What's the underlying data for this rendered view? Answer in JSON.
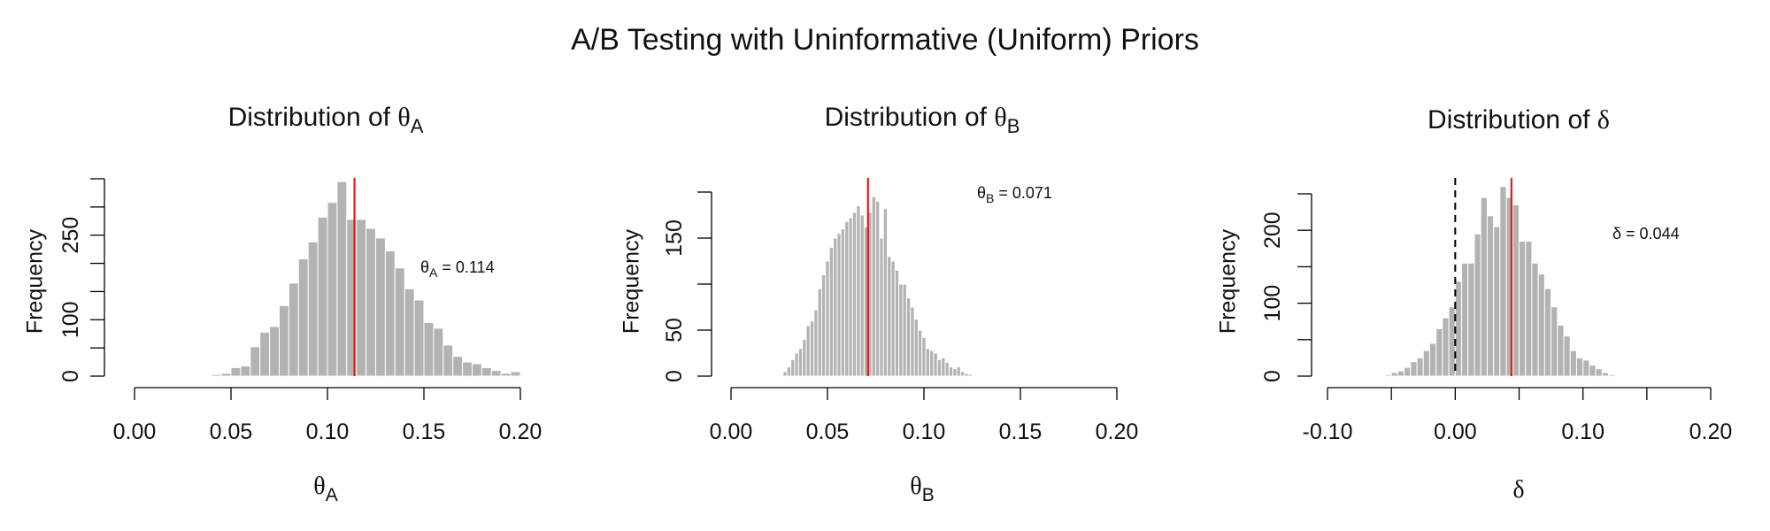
{
  "title": "A/B Testing with Uninformative (Uniform) Priors",
  "colors": {
    "bars": "#b3b3b3",
    "bar_edge": "#ffffff",
    "mean_line": "#e41a1c",
    "zero_line": "#000000",
    "axis": "#000000"
  },
  "chart_data": [
    {
      "type": "bar",
      "title_text": "Distribution of ",
      "title_symbol": "θ",
      "title_sub": "A",
      "ylabel": "Frequency",
      "xlabel_symbol": "θ",
      "xlabel_sub": "A",
      "xlim": [
        0,
        0.2
      ],
      "ylim": [
        0,
        350
      ],
      "xticks": [
        "0.00",
        "0.05",
        "0.10",
        "0.15",
        "0.20"
      ],
      "xtick_values": [
        0,
        0.05,
        0.1,
        0.15,
        0.2
      ],
      "yticks": [
        "0",
        "100",
        "250"
      ],
      "ytick_values": [
        0,
        100,
        250
      ],
      "yticks_unlabeled": [
        50,
        150,
        200,
        300,
        350
      ],
      "bin_start": 0.035,
      "bin_width": 0.005,
      "values": [
        1,
        3,
        5,
        15,
        18,
        52,
        78,
        88,
        125,
        165,
        208,
        238,
        282,
        308,
        345,
        278,
        278,
        262,
        245,
        222,
        192,
        155,
        135,
        95,
        85,
        55,
        35,
        25,
        22,
        15,
        10,
        5,
        8
      ],
      "mean": 0.114,
      "annotation_prefix": "θ",
      "annotation_sub": "A",
      "annotation_value": " = 0.114"
    },
    {
      "type": "bar",
      "title_text": "Distribution of ",
      "title_symbol": "θ",
      "title_sub": "B",
      "ylabel": "Frequency",
      "xlabel_symbol": "θ",
      "xlabel_sub": "B",
      "xlim": [
        0,
        0.2
      ],
      "ylim": [
        0,
        200
      ],
      "xticks": [
        "0.00",
        "0.05",
        "0.10",
        "0.15",
        "0.20"
      ],
      "xtick_values": [
        0,
        0.05,
        0.1,
        0.15,
        0.2
      ],
      "yticks": [
        "0",
        "50",
        "150"
      ],
      "ytick_values": [
        0,
        50,
        150
      ],
      "yticks_unlabeled": [
        100,
        200
      ],
      "bin_start": 0.027,
      "bin_width": 0.002,
      "values": [
        5,
        10,
        18,
        25,
        30,
        40,
        55,
        60,
        72,
        95,
        110,
        125,
        140,
        150,
        155,
        160,
        168,
        172,
        178,
        185,
        175,
        162,
        178,
        195,
        190,
        150,
        182,
        130,
        125,
        115,
        100,
        100,
        85,
        75,
        62,
        50,
        42,
        30,
        28,
        25,
        18,
        20,
        15,
        10,
        8,
        10,
        5,
        3,
        2,
        1,
        1,
        1
      ],
      "mean": 0.071,
      "annotation_prefix": "θ",
      "annotation_sub": "B",
      "annotation_value": " = 0.071"
    },
    {
      "type": "bar",
      "title_text": "Distribution of ",
      "title_symbol": "δ",
      "title_sub": "",
      "ylabel": "Frequency",
      "xlabel_symbol": "δ",
      "xlabel_sub": "",
      "xlim": [
        -0.1,
        0.2
      ],
      "ylim": [
        0,
        250
      ],
      "xticks": [
        "-0.10",
        "0.00",
        "0.10",
        "0.20"
      ],
      "xtick_values": [
        -0.1,
        0.0,
        0.1,
        0.2
      ],
      "yticks": [
        "0",
        "100",
        "200"
      ],
      "ytick_values": [
        0,
        100,
        200
      ],
      "yticks_unlabeled": [
        50,
        150,
        250
      ],
      "bin_start": -0.06,
      "bin_width": 0.005,
      "values": [
        1,
        2,
        5,
        7,
        12,
        20,
        25,
        35,
        45,
        65,
        80,
        95,
        130,
        155,
        155,
        195,
        245,
        220,
        205,
        260,
        245,
        235,
        185,
        185,
        155,
        140,
        120,
        95,
        70,
        55,
        35,
        25,
        22,
        15,
        10,
        5,
        2
      ],
      "mean": 0.044,
      "zero_line": 0,
      "annotation_prefix": "δ",
      "annotation_sub": "",
      "annotation_value": " = 0.044"
    }
  ]
}
